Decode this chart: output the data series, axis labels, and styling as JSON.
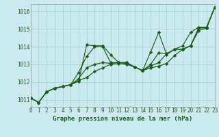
{
  "title": "Graphe pression niveau de la mer (hPa)",
  "background_color": "#cce9f0",
  "grid_color": "#aacccc",
  "line_color": "#1a5c1a",
  "xlim": [
    0,
    23
  ],
  "ylim": [
    1010.6,
    1016.4
  ],
  "yticks": [
    1011,
    1012,
    1013,
    1014,
    1015,
    1016
  ],
  "xticks": [
    0,
    1,
    2,
    3,
    4,
    5,
    6,
    7,
    8,
    9,
    10,
    11,
    12,
    13,
    14,
    15,
    16,
    17,
    18,
    19,
    20,
    21,
    22,
    23
  ],
  "series": [
    [
      1011.1,
      1010.85,
      1011.45,
      1011.65,
      1011.75,
      1011.85,
      1012.05,
      1014.1,
      1014.05,
      1014.05,
      1013.55,
      1013.1,
      1013.1,
      1012.85,
      1012.65,
      1013.7,
      1014.8,
      1013.55,
      1013.85,
      1014.05,
      1014.8,
      1015.1,
      1015.1,
      1016.2
    ],
    [
      1011.1,
      1010.85,
      1011.45,
      1011.65,
      1011.75,
      1011.85,
      1012.55,
      1013.45,
      1014.0,
      1014.0,
      1013.1,
      1013.1,
      1013.1,
      1012.85,
      1012.65,
      1013.0,
      1013.65,
      1013.6,
      1013.85,
      1013.85,
      1014.05,
      1015.05,
      1015.1,
      1016.2
    ],
    [
      1011.1,
      1010.85,
      1011.45,
      1011.65,
      1011.75,
      1011.85,
      1012.2,
      1012.8,
      1013.0,
      1013.1,
      1013.05,
      1013.1,
      1013.05,
      1012.85,
      1012.65,
      1012.9,
      1013.1,
      1013.6,
      1013.85,
      1013.85,
      1014.05,
      1015.05,
      1015.05,
      1016.2
    ],
    [
      1011.1,
      1010.85,
      1011.45,
      1011.65,
      1011.75,
      1011.85,
      1012.1,
      1012.25,
      1012.6,
      1012.8,
      1013.0,
      1013.05,
      1013.0,
      1012.85,
      1012.65,
      1012.8,
      1012.9,
      1013.05,
      1013.5,
      1013.85,
      1014.05,
      1014.9,
      1015.05,
      1016.2
    ]
  ],
  "marker": "D",
  "markersize": 2.2,
  "linewidth": 0.85,
  "tick_fontsize": 5.5,
  "title_fontsize": 6.5,
  "tick_color": "#1a5c1a"
}
